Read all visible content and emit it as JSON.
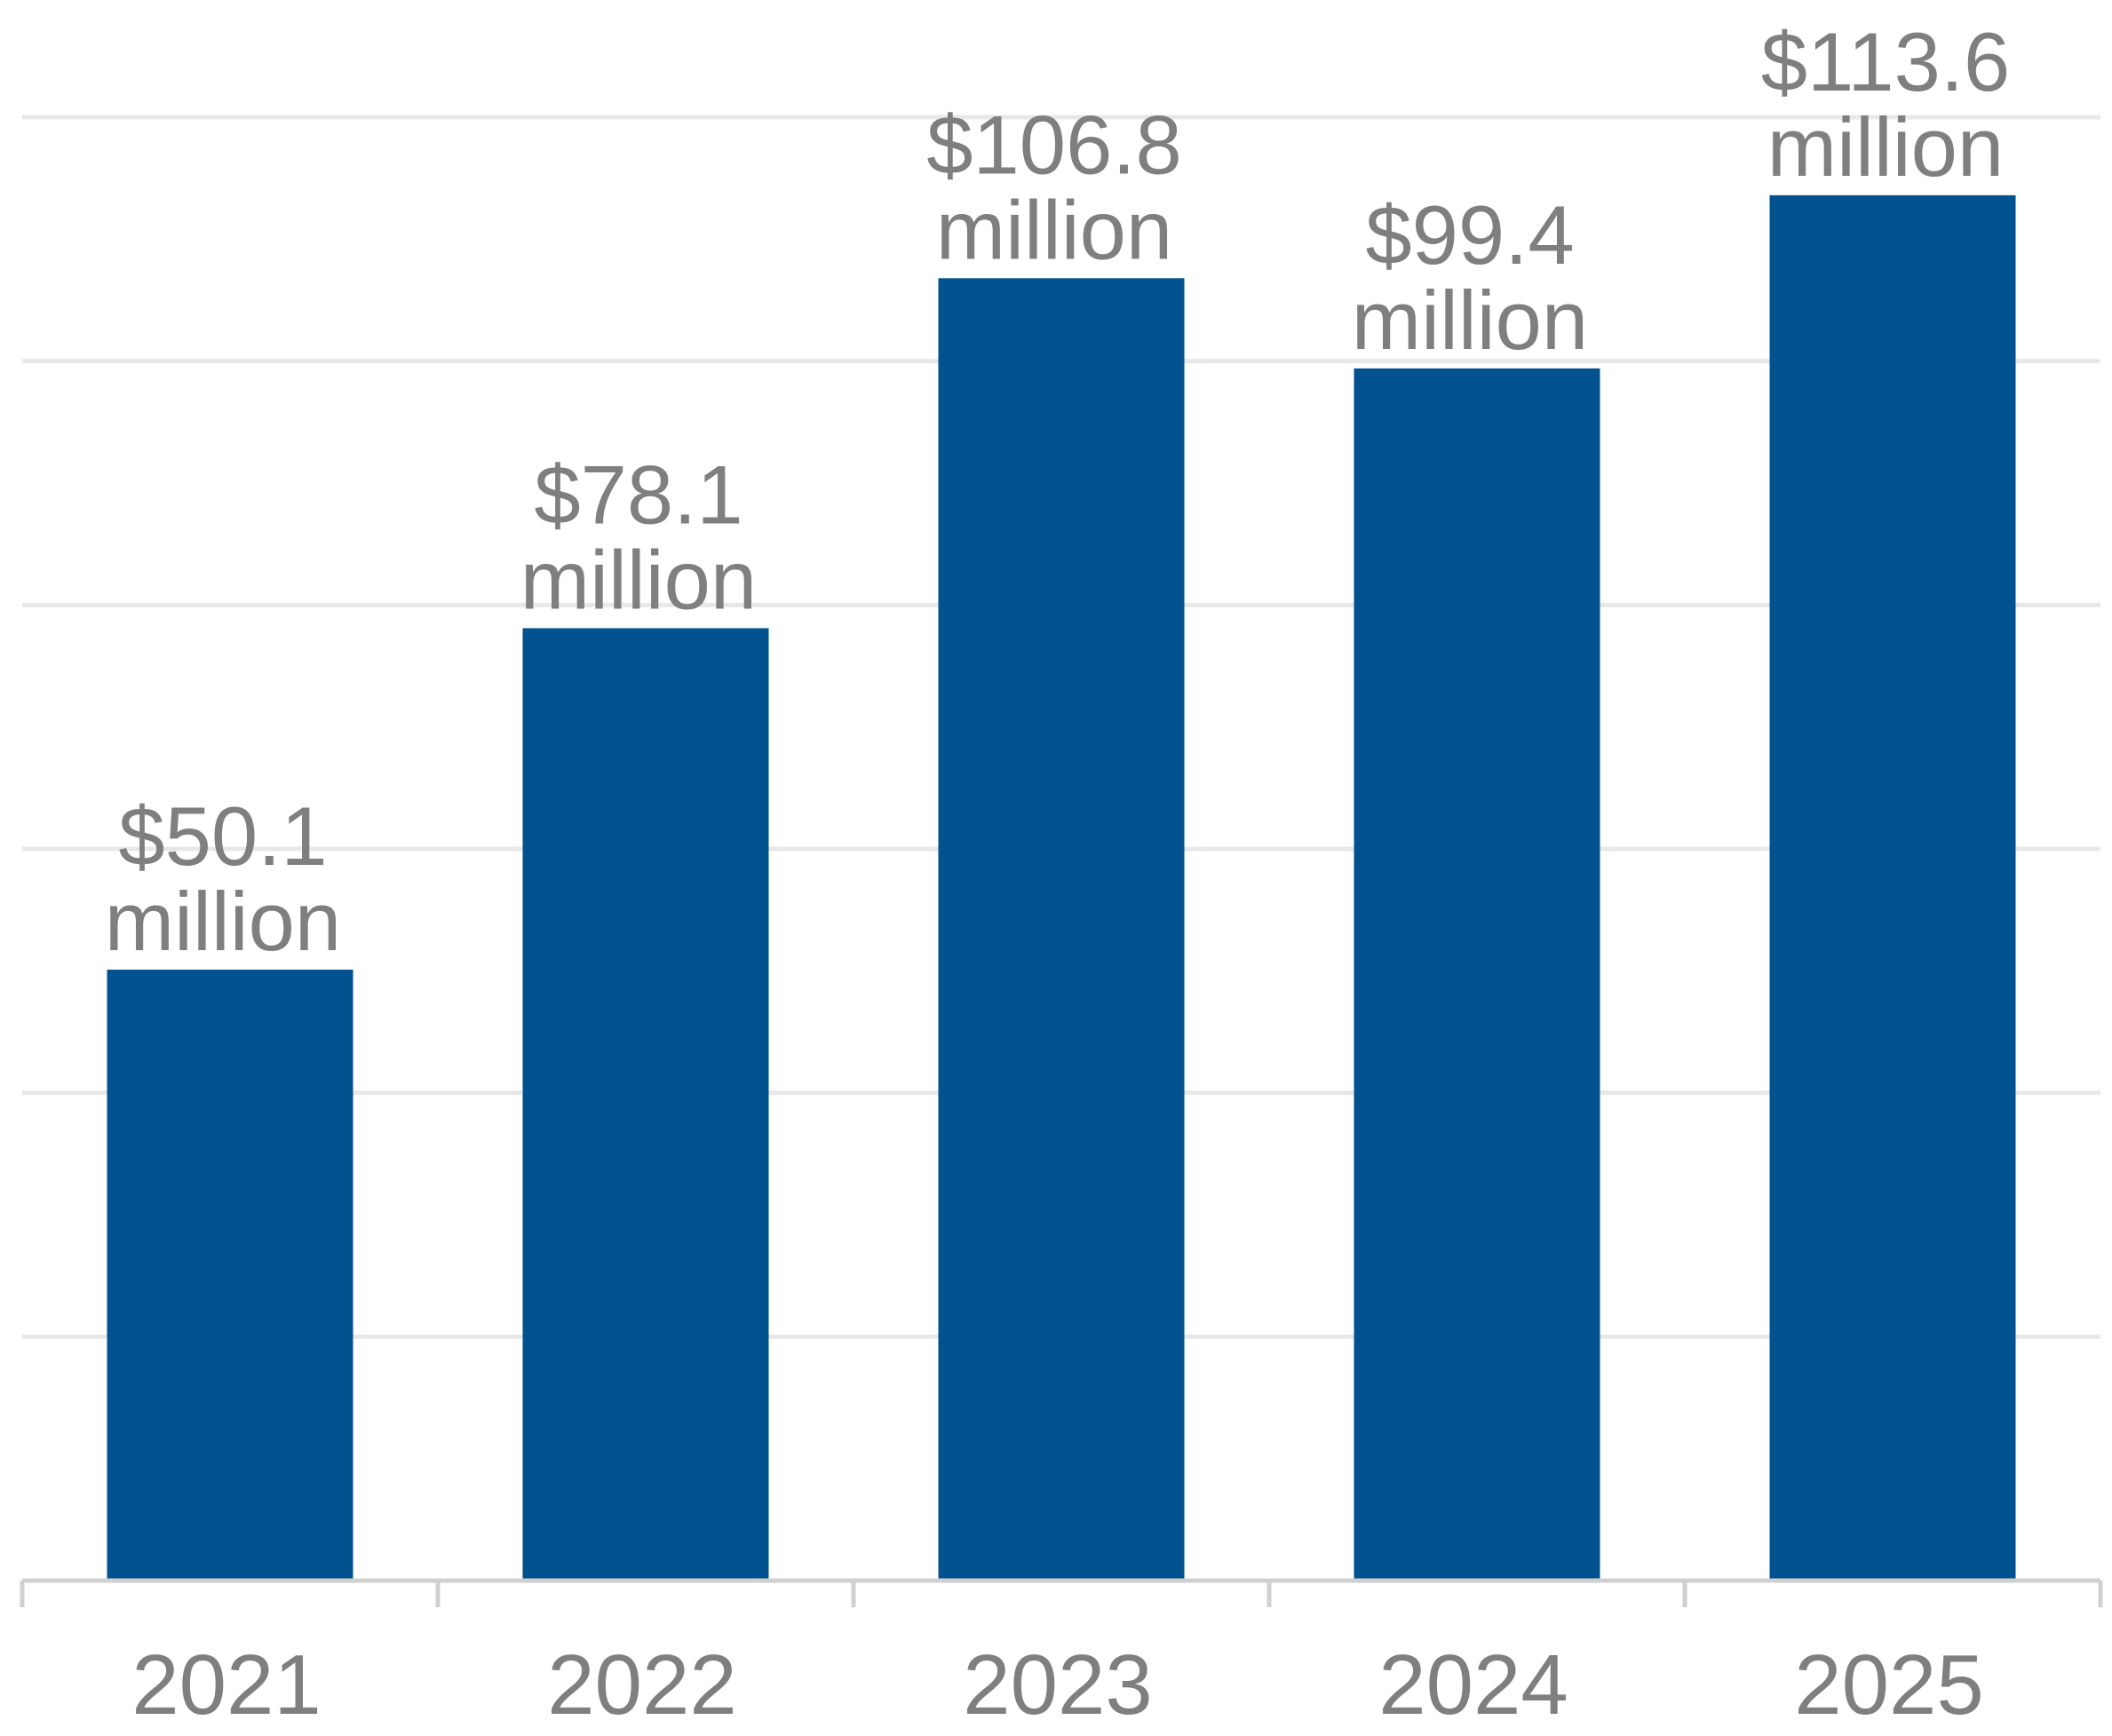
{
  "chart_data": {
    "type": "bar",
    "categories": [
      "2021",
      "2022",
      "2023",
      "2024",
      "2025"
    ],
    "values": [
      50.1,
      78.1,
      106.8,
      99.4,
      113.6
    ],
    "data_labels": [
      {
        "value": "$50.1",
        "unit": "million"
      },
      {
        "value": "$78.1",
        "unit": "million"
      },
      {
        "value": "$106.8",
        "unit": "million"
      },
      {
        "value": "$99.4",
        "unit": "million"
      },
      {
        "value": "$113.6",
        "unit": "million"
      }
    ],
    "title": "",
    "xlabel": "",
    "ylabel": "",
    "ylim": [
      0,
      120
    ],
    "ytick_step": 20,
    "grid": true,
    "legend": "none",
    "colors": {
      "bar": "#02528f",
      "label": "#7f7f7f",
      "grid": "#e8e8e8",
      "axis": "#d0d0d0"
    }
  }
}
